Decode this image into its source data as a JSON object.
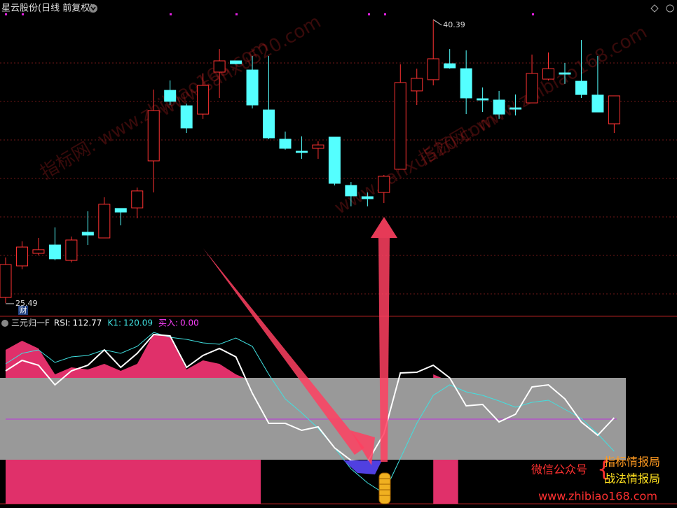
{
  "chart_data": [
    {
      "type": "candlestick",
      "title": "星云股份(日线 前复权)",
      "open": [
        25.78,
        27.44,
        28.1,
        28.54,
        27.73,
        29.21,
        28.91,
        30.46,
        30.49,
        32.96,
        36.67,
        35.86,
        35.42,
        37.63,
        38.22,
        37.74,
        35.64,
        34.1,
        33.47,
        33.62,
        34.21,
        31.67,
        31.08,
        31.3,
        32.52,
        36.64,
        37.23,
        38.07,
        37.81,
        36.23,
        36.16,
        35.75,
        36.01,
        37.26,
        37.59,
        37.15,
        36.42,
        34.91
      ],
      "high": [
        27.88,
        28.73,
        28.91,
        29.46,
        28.98,
        30.31,
        31.05,
        30.46,
        31.56,
        36.71,
        37.19,
        35.97,
        37.56,
        38.84,
        38.22,
        38.48,
        38.48,
        34.5,
        34.25,
        33.99,
        34.21,
        31.85,
        31.3,
        32.22,
        38.04,
        37.81,
        40.39,
        38.84,
        38.77,
        36.82,
        36.64,
        36.45,
        38.55,
        38.66,
        38.11,
        39.32,
        38.48,
        36.38
      ],
      "low": [
        25.49,
        27.26,
        27.99,
        27.73,
        27.62,
        28.54,
        28.91,
        29.57,
        29.94,
        31.3,
        35.9,
        34.43,
        35.17,
        36.27,
        38.04,
        35.72,
        34.1,
        33.55,
        33.07,
        33.07,
        31.67,
        30.57,
        30.57,
        30.75,
        32.52,
        35.9,
        36.93,
        37.81,
        35.42,
        35.53,
        35.17,
        35.35,
        36.01,
        37.19,
        37.01,
        36.27,
        35.53,
        34.43
      ],
      "close": [
        27.51,
        28.43,
        28.29,
        27.81,
        28.8,
        29.06,
        30.68,
        30.27,
        31.38,
        35.61,
        36.09,
        34.69,
        36.93,
        38.22,
        38.07,
        35.9,
        34.17,
        33.62,
        33.4,
        33.8,
        31.78,
        31.12,
        30.97,
        32.15,
        37.08,
        37.3,
        38.33,
        37.85,
        36.27,
        36.16,
        35.42,
        35.68,
        37.56,
        37.81,
        37.52,
        36.45,
        35.53,
        36.38
      ],
      "up_color": "#ff3232",
      "down_color": "#54ffff",
      "ylim": [
        24.79,
        41.42
      ],
      "grid": true,
      "max_label": 40.39,
      "min_label": 25.49,
      "marker_text": "财"
    },
    {
      "type": "indicator",
      "title": "三元归一F",
      "series": [
        {
          "name": "RSI:",
          "value": 112.77,
          "color": "#ffffff",
          "values": [
            76,
            82,
            79.2,
            68,
            76,
            79.2,
            88,
            78,
            86,
            96.8,
            96,
            78,
            84.8,
            88.8,
            84,
            63.2,
            46,
            46,
            42,
            44,
            32,
            24.8,
            24,
            40,
            74.8,
            75.2,
            79.2,
            72,
            56,
            56.8,
            46.8,
            51.2,
            66.8,
            68,
            60,
            46.8,
            39.2,
            49.2
          ]
        },
        {
          "name": "K1:",
          "value": 120.09,
          "color": "#40e0e0",
          "values": [
            80,
            86,
            88,
            80.8,
            84,
            84.8,
            88,
            86,
            90,
            98,
            95.2,
            94,
            92,
            91.2,
            94.8,
            90,
            74,
            60,
            52,
            43.2,
            32,
            20,
            12,
            6,
            26,
            46,
            62,
            68,
            64,
            62,
            58.8,
            55.2,
            58,
            59.2,
            54,
            48.8,
            40,
            30
          ]
        },
        {
          "name": "买入:",
          "value": 0,
          "value_label": "0.00",
          "color": "#ff40ff"
        }
      ],
      "area": {
        "color": "#e0306a",
        "values": [
          88,
          93.2,
          88.8,
          74,
          78,
          76.8,
          80,
          76,
          80,
          97.2,
          96,
          76.8,
          82,
          80,
          74,
          70,
          null,
          null,
          null,
          null,
          null,
          null,
          null,
          null,
          null,
          null,
          74,
          70,
          null,
          null,
          null,
          null,
          null,
          null,
          null,
          null,
          null,
          null
        ]
      },
      "band": [
        25.2,
        72
      ],
      "band_color": "#999999",
      "ref_line": 48.4,
      "ref_color": "#c030e0",
      "ylim": [
        0,
        100
      ]
    }
  ],
  "watermarks": [
    "指标网: www.zhibiao168.com",
    "www.sanxu520.com",
    "指标网: www.zhibiao168.com",
    "www.sanxu520.com"
  ],
  "footer": {
    "wechat": "微信公众号",
    "account1": "指标情报局",
    "account2": "战法情报局",
    "site": "www.zhibiao168.com"
  }
}
